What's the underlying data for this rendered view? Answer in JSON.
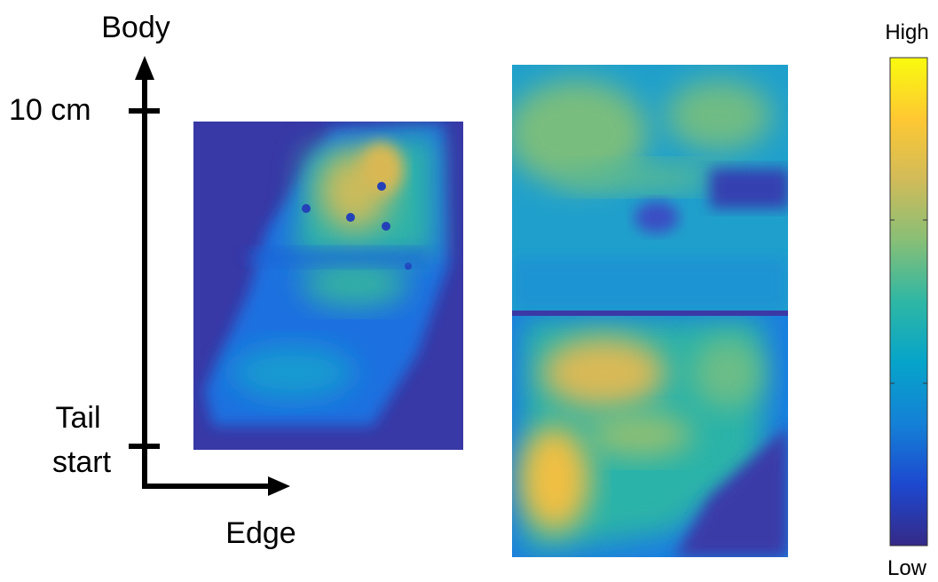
{
  "axes": {
    "y_label": "Body",
    "tick_label": "10 cm",
    "origin_label": [
      "Tail",
      "start"
    ],
    "x_label": "Edge"
  },
  "colorbar": {
    "high": "High",
    "low": "Low"
  }
}
